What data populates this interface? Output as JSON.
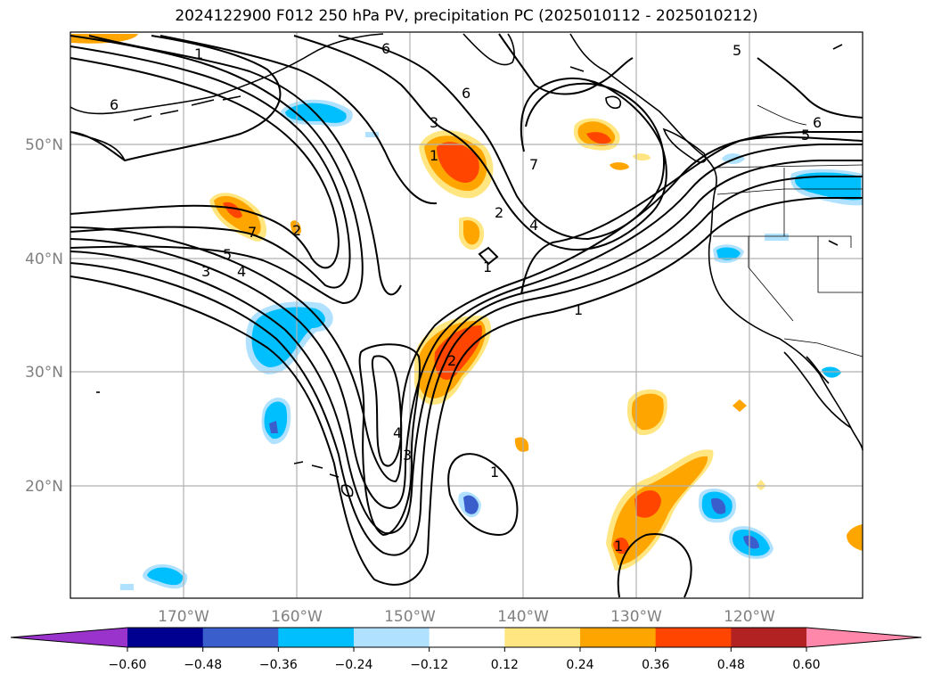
{
  "title": "2024122900 F012 250 hPa PV, precipitation PC (2025010112 - 2025010212)",
  "map": {
    "lat_labels": [
      "50°N",
      "40°N",
      "30°N",
      "20°N"
    ],
    "lon_labels": [
      "170°W",
      "160°W",
      "150°W",
      "140°W",
      "130°W",
      "120°W"
    ],
    "lat_values": [
      50,
      40,
      30,
      20
    ],
    "lon_values": [
      -170,
      -160,
      -150,
      -140,
      -130,
      -120
    ],
    "extent": {
      "lon": [
        -180,
        -110
      ],
      "lat": [
        10,
        60
      ]
    },
    "gridlines": true,
    "contour_labels": [
      "1",
      "6",
      "5",
      "6",
      "7",
      "4",
      "5",
      "3",
      "2",
      "6",
      "7",
      "1",
      "2",
      "3",
      "4",
      "1",
      "1",
      "4",
      "3",
      "2",
      "1",
      "1",
      "5",
      "6"
    ]
  },
  "colorbar": {
    "ticks": [
      "−0.60",
      "−0.48",
      "−0.36",
      "−0.24",
      "−0.12",
      "0.12",
      "0.24",
      "0.36",
      "0.48",
      "0.60"
    ],
    "colors": [
      "#9933cc",
      "#000090",
      "#3a5fcd",
      "#00bfff",
      "#b0e2ff",
      "#ffffff",
      "#ffe680",
      "#ffa500",
      "#ff4500",
      "#b22222",
      "#ff88aa"
    ],
    "extend": "both"
  }
}
